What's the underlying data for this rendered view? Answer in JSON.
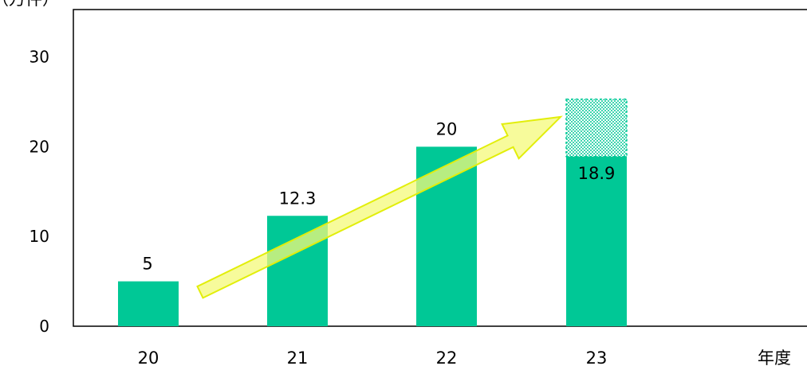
{
  "chart_data": {
    "type": "bar",
    "y_unit_label": "（万件）",
    "x_unit_label": "年度",
    "categories": [
      "20",
      "21",
      "22",
      "23"
    ],
    "series": [
      {
        "values": [
          5,
          12.3,
          20,
          18.9
        ]
      }
    ],
    "projected_values": [
      null,
      null,
      null,
      25.3
    ],
    "data_labels": [
      "5",
      "12.3",
      "20",
      "18.9"
    ],
    "yticks": [
      "0",
      "10",
      "20",
      "30"
    ],
    "ylim": [
      0,
      35.5
    ],
    "grid": false,
    "legend": "none",
    "trend_arrow": {
      "from_category": "20",
      "to_category": "23",
      "from_value": 4.5,
      "to_value": 23.5
    },
    "colors": {
      "bar": "#00c896",
      "projection": "#00c896",
      "arrow_fill": "#f4f97a",
      "arrow_stroke": "#e2ee0a"
    }
  }
}
